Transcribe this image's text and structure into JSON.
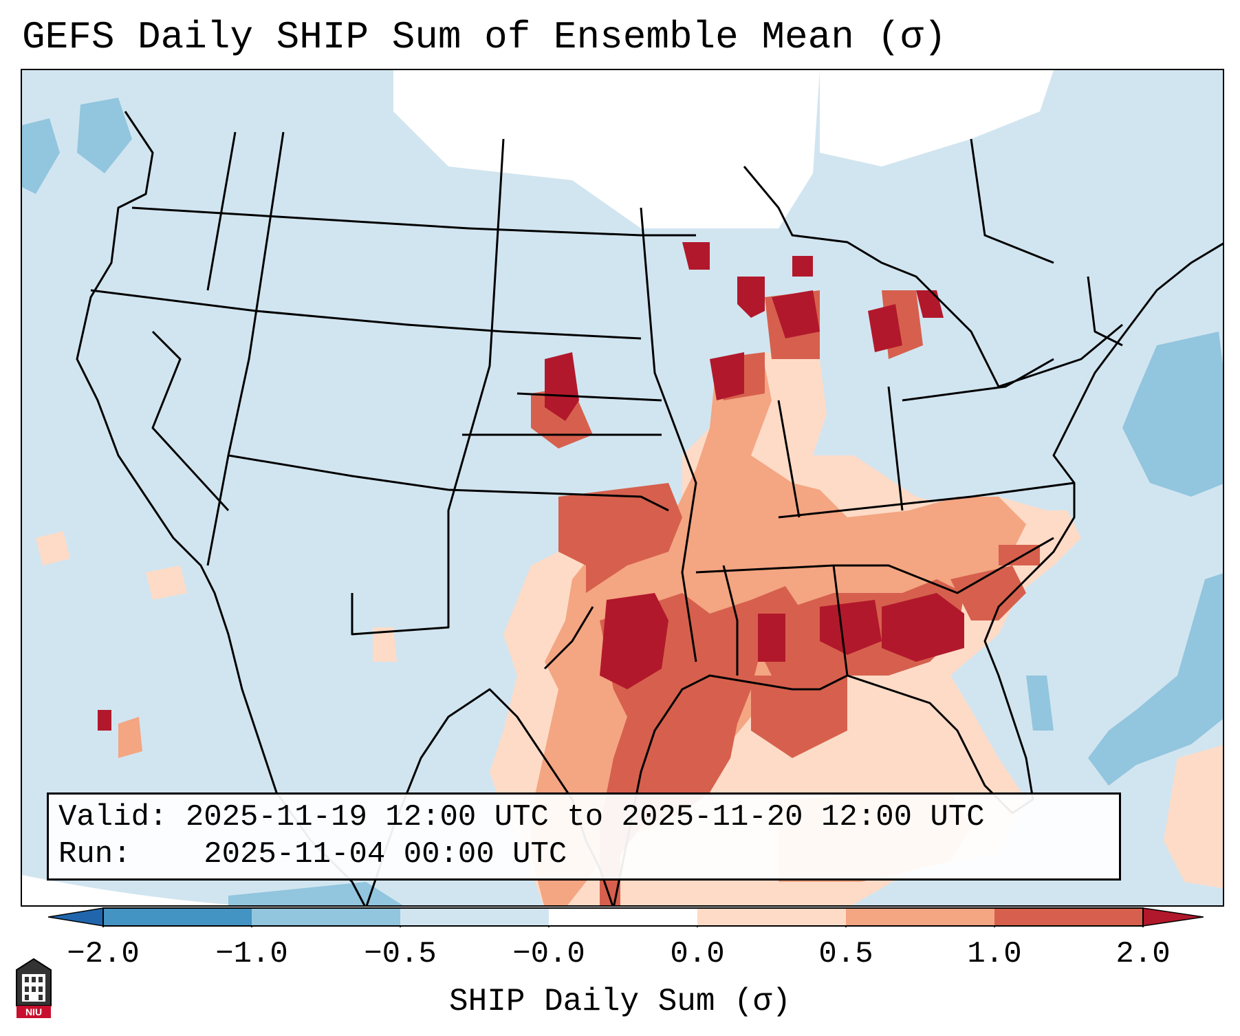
{
  "title": "GEFS Daily SHIP Sum of Ensemble Mean (σ)",
  "info": {
    "valid_label": "Valid:",
    "valid_value": "2025-11-19 12:00 UTC to 2025-11-20 12:00 UTC",
    "run_label": "Run:",
    "run_value": "2025-11-04 00:00 UTC"
  },
  "colorbar": {
    "label": "SHIP Daily Sum (σ)",
    "ticks": [
      "−2.0",
      "−1.0",
      "−0.5",
      "−0.0",
      "0.0",
      "0.5",
      "1.0",
      "2.0"
    ],
    "colors": [
      "#4393c3",
      "#92c5de",
      "#d1e5f0",
      "#ffffff",
      "#fddbc7",
      "#f4a582",
      "#d6604d",
      "#b2182b"
    ],
    "under_color": "#2166ac",
    "over_color": "#b2182b"
  },
  "logo": {
    "text": "NIU",
    "icon": "niu-building-logo"
  },
  "map": {
    "region": "CONUS",
    "land_background": "#d1e5f0"
  }
}
